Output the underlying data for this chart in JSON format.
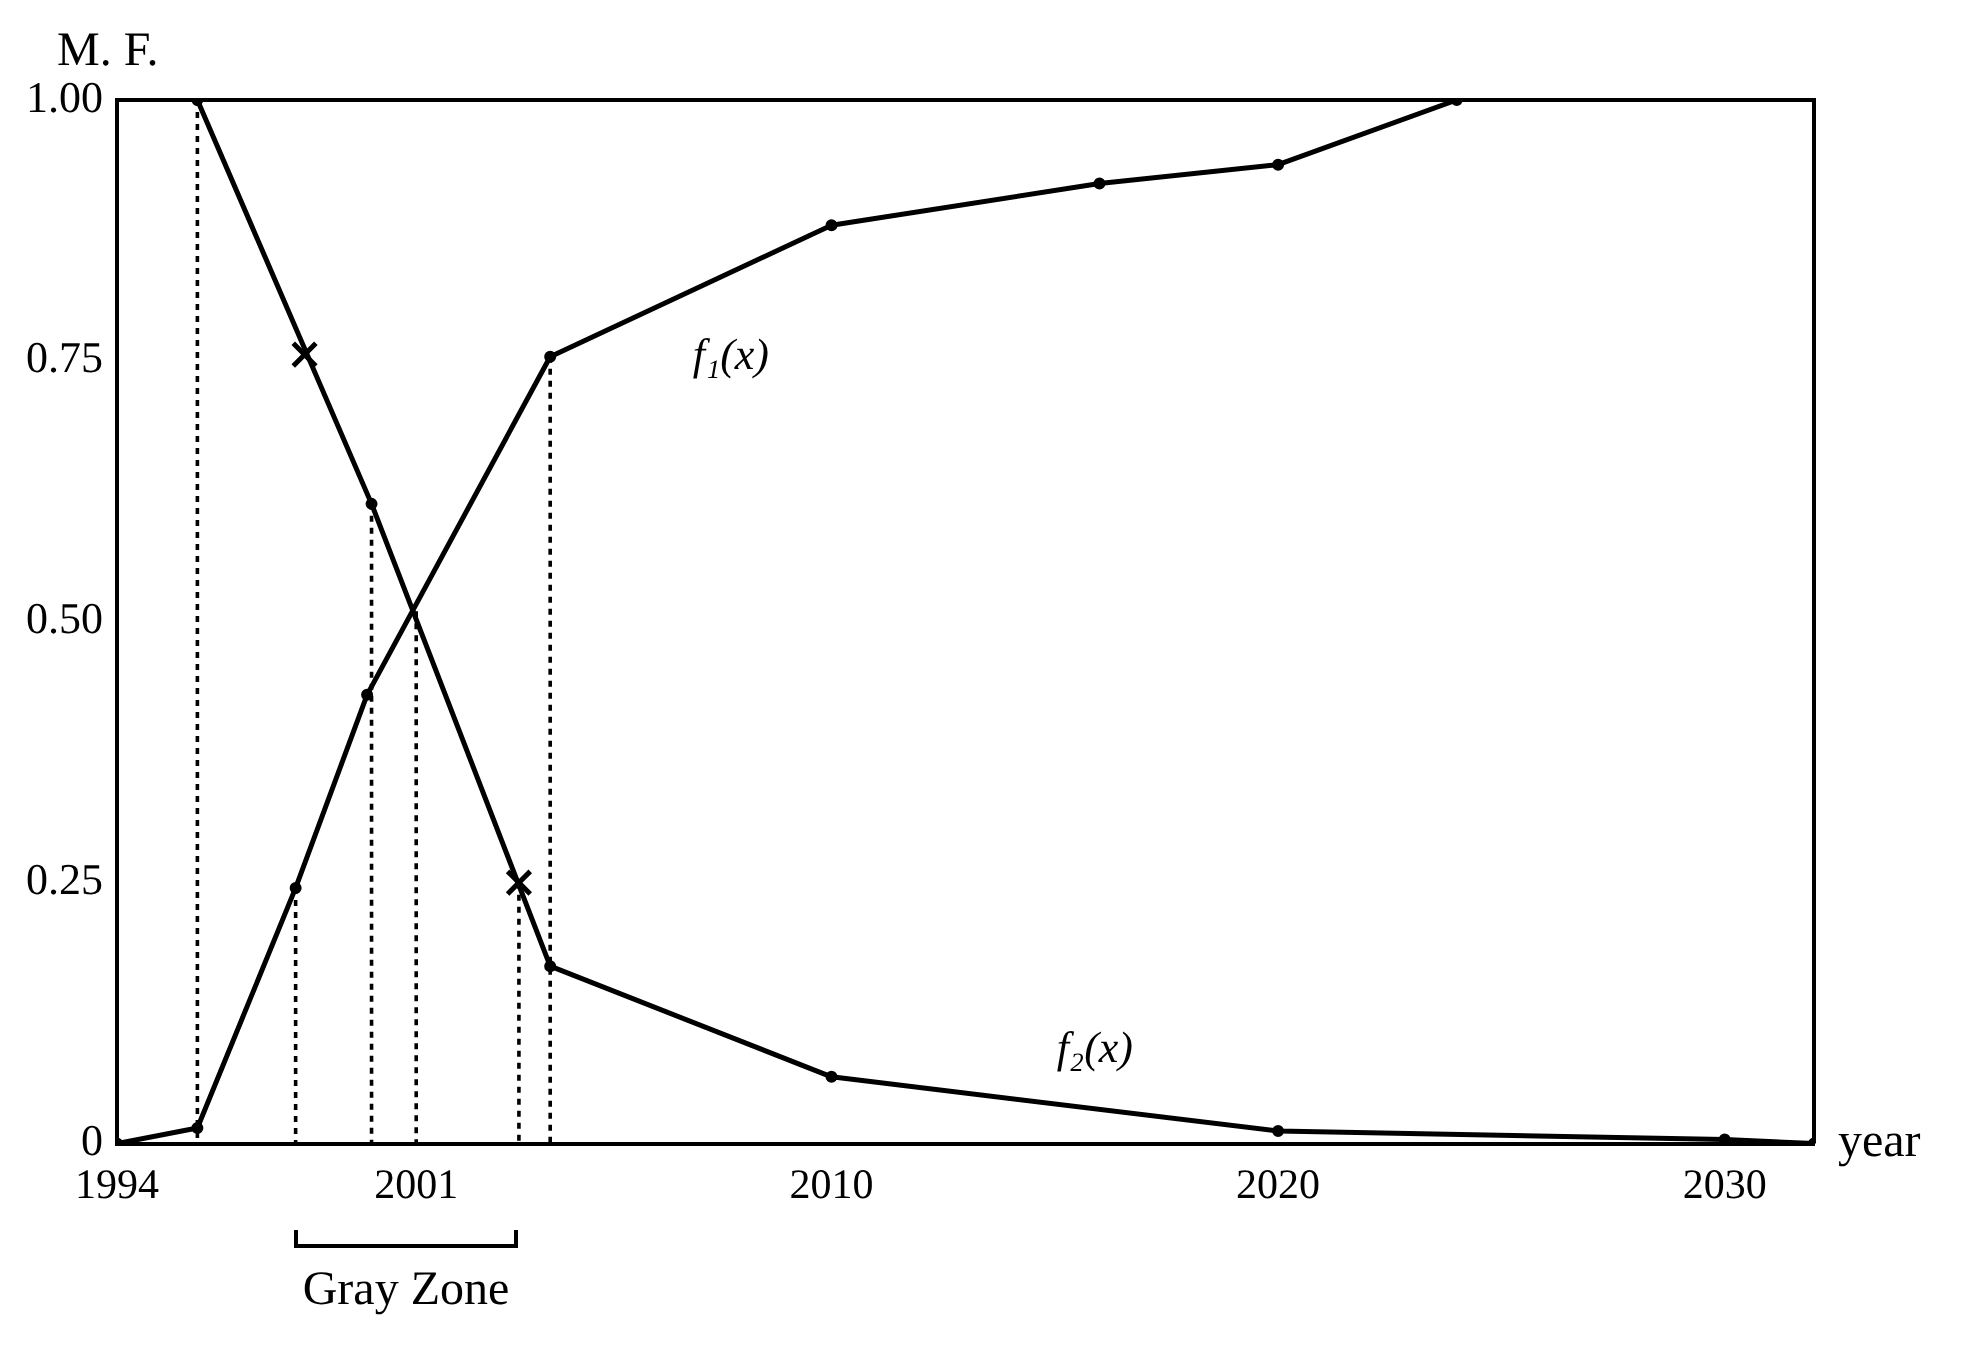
{
  "chart_data": {
    "type": "line",
    "ylabel": "M. F.",
    "xlabel": "year",
    "xlim": [
      1994,
      2032
    ],
    "xticks": [
      1994,
      {
        "value": 2000.7,
        "label": "2001"
      },
      2010,
      2020,
      2030
    ],
    "ylim": [
      0,
      1
    ],
    "yticks": [
      0,
      {
        "value": 0.25,
        "label": "0.25"
      },
      {
        "value": 0.5,
        "label": "0.50"
      },
      {
        "value": 0.75,
        "label": "0.75"
      },
      {
        "value": 1,
        "label": "1.00"
      }
    ],
    "grid": false,
    "legend": false,
    "marker": "circle",
    "line_style": "solid",
    "series": [
      {
        "name": "f₁(x)",
        "color": "#000000",
        "x": [
          1994,
          1995.8,
          1998,
          1999.6,
          2003.7,
          2010,
          2016,
          2020,
          2024
        ],
        "values": [
          0,
          0.015,
          0.245,
          0.43,
          0.754,
          0.88,
          0.92,
          0.938,
          1.0
        ]
      },
      {
        "name": "f₂(x)",
        "color": "#000000",
        "x": [
          1995.8,
          1999.7,
          2003.7,
          2010,
          2020,
          2030,
          2032
        ],
        "values": [
          1.0,
          0.613,
          0.17,
          0.064,
          0.012,
          0.004,
          0
        ]
      },
      {
        "type": "scatter",
        "marker": "cross",
        "color": "#000000",
        "x": [
          1998.2,
          2003.0
        ],
        "values": [
          0.756,
          0.25
        ]
      },
      {
        "color": "#000000",
        "line_style": "dotted",
        "marker": "none",
        "x": [
          1995.8,
          1995.8
        ],
        "values": [
          1.0,
          0
        ]
      },
      {
        "color": "#000000",
        "line_style": "dotted",
        "marker": "none",
        "x": [
          1998,
          1998
        ],
        "values": [
          0.245,
          0
        ]
      },
      {
        "color": "#000000",
        "line_style": "dotted",
        "marker": "none",
        "x": [
          1999.7,
          1999.7
        ],
        "values": [
          0.613,
          0
        ]
      },
      {
        "color": "#000000",
        "line_style": "dotted",
        "marker": "none",
        "x": [
          2000.7,
          2000.7
        ],
        "values": [
          0.51,
          0
        ]
      },
      {
        "color": "#000000",
        "line_style": "dotted",
        "marker": "none",
        "x": [
          2003.0,
          2003.0
        ],
        "values": [
          0.25,
          0
        ]
      },
      {
        "color": "#000000",
        "line_style": "dotted",
        "marker": "none",
        "x": [
          2003.7,
          2003.7
        ],
        "values": [
          0.754,
          0
        ]
      }
    ],
    "annotations": [
      "Gray Zone"
    ]
  }
}
